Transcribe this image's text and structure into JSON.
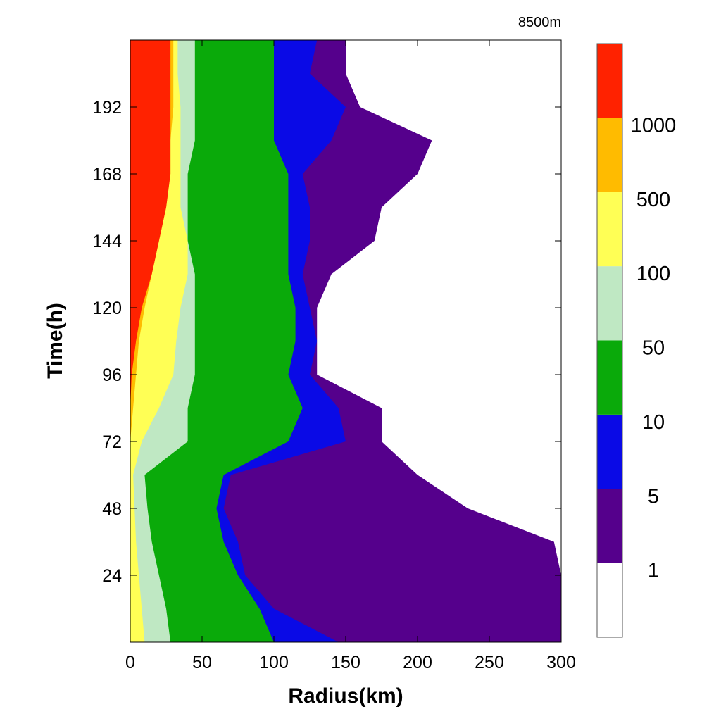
{
  "chart_data": {
    "type": "heatmap",
    "title": "8500m",
    "xlabel": "Radius(km)",
    "ylabel": "Time(h)",
    "xlim": [
      0,
      300
    ],
    "ylim": [
      0,
      216
    ],
    "x_ticks": [
      0,
      50,
      100,
      150,
      200,
      250,
      300
    ],
    "y_ticks": [
      24,
      48,
      72,
      96,
      120,
      144,
      168,
      192
    ],
    "colorbar": {
      "levels": [
        "1",
        "5",
        "10",
        "50",
        "100",
        "500",
        "1000"
      ],
      "colors": [
        "#ffffff",
        "#55008c",
        "#0a0ae6",
        "#0aaa0a",
        "#bfe8c3",
        "#ffff55",
        "#ffbb00",
        "#ff2200"
      ]
    },
    "contour_boundaries_km": {
      "time_h": [
        0,
        12,
        24,
        36,
        48,
        60,
        72,
        84,
        96,
        108,
        120,
        132,
        144,
        156,
        168,
        180,
        192,
        204,
        216
      ],
      "level_1": [
        300,
        300,
        300,
        295,
        235,
        200,
        175,
        175,
        130,
        130,
        130,
        140,
        170,
        175,
        200,
        210,
        160,
        150,
        150
      ],
      "level_5": [
        145,
        100,
        80,
        75,
        65,
        70,
        150,
        145,
        125,
        130,
        125,
        120,
        125,
        125,
        120,
        140,
        150,
        125,
        130
      ],
      "level_10": [
        100,
        90,
        75,
        65,
        60,
        65,
        110,
        120,
        110,
        115,
        115,
        110,
        110,
        110,
        110,
        100,
        100,
        100,
        100
      ],
      "level_50": [
        28,
        25,
        20,
        15,
        12,
        10,
        40,
        40,
        45,
        45,
        45,
        45,
        40,
        40,
        40,
        45,
        45,
        45,
        45
      ],
      "level_100": [
        10,
        8,
        6,
        4,
        3,
        2,
        8,
        20,
        30,
        32,
        35,
        40,
        40,
        35,
        35,
        35,
        35,
        33,
        33
      ],
      "level_500": [
        0,
        0,
        0,
        0,
        0,
        0,
        0,
        2,
        4,
        6,
        10,
        15,
        20,
        25,
        28,
        28,
        30,
        30,
        30
      ],
      "level_1000": [
        0,
        0,
        0,
        0,
        0,
        0,
        0,
        0,
        1,
        4,
        8,
        15,
        20,
        25,
        28,
        28,
        28,
        28,
        28
      ]
    }
  }
}
